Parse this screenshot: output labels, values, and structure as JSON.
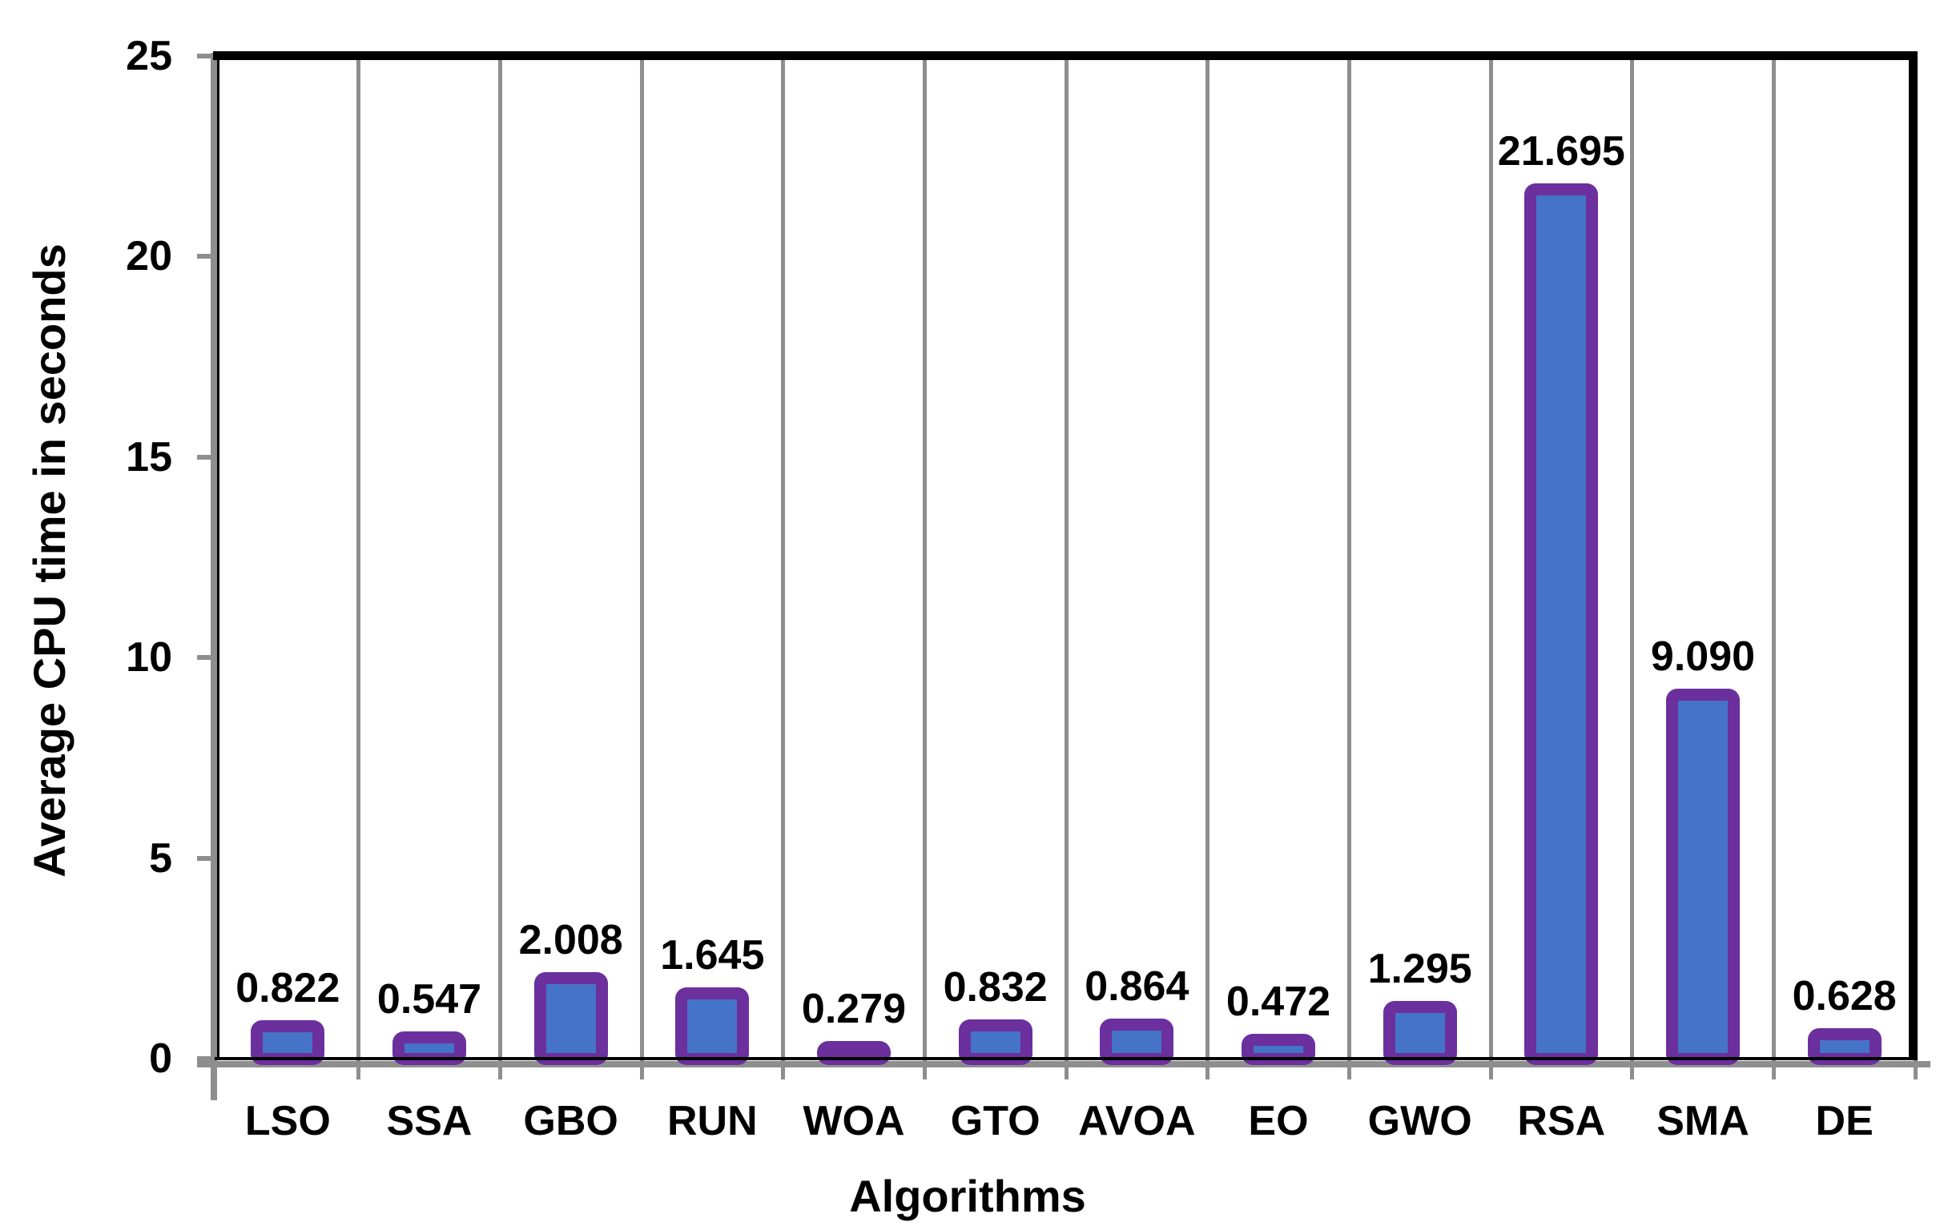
{
  "chart_data": {
    "type": "bar",
    "title": "",
    "categories": [
      "LSO",
      "SSA",
      "GBO",
      "RUN",
      "WOA",
      "GTO",
      "AVOA",
      "EO",
      "GWO",
      "RSA",
      "SMA",
      "DE"
    ],
    "values": [
      0.822,
      0.547,
      2.008,
      1.645,
      0.279,
      0.832,
      0.864,
      0.472,
      1.295,
      21.695,
      9.09,
      0.628
    ],
    "value_labels": [
      "0.822",
      "0.547",
      "2.008",
      "1.645",
      "0.279",
      "0.832",
      "0.864",
      "0.472",
      "1.295",
      "21.695",
      "9.090",
      "0.628"
    ],
    "xlabel": "Algorithms",
    "ylabel": "Average CPU time in seconds",
    "ylim": [
      0,
      25
    ],
    "yticks": [
      "0",
      "5",
      "10",
      "15",
      "20",
      "25"
    ],
    "grid": "vertical-category-separators",
    "legend_position": "none",
    "colors": {
      "bar_fill": "#4573C7",
      "bar_border": "#6B2F9E",
      "gridline": "#8E8E8E",
      "axis_line": "#8E8E8E",
      "plot_frame": "#000000",
      "zero_line": "#000000",
      "text": "#000000"
    }
  }
}
